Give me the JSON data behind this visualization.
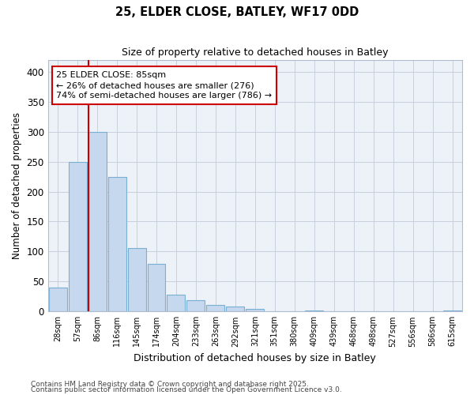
{
  "title1": "25, ELDER CLOSE, BATLEY, WF17 0DD",
  "title2": "Size of property relative to detached houses in Batley",
  "xlabel": "Distribution of detached houses by size in Batley",
  "ylabel": "Number of detached properties",
  "categories": [
    "28sqm",
    "57sqm",
    "86sqm",
    "116sqm",
    "145sqm",
    "174sqm",
    "204sqm",
    "233sqm",
    "263sqm",
    "292sqm",
    "321sqm",
    "351sqm",
    "380sqm",
    "409sqm",
    "439sqm",
    "468sqm",
    "498sqm",
    "527sqm",
    "556sqm",
    "586sqm",
    "615sqm"
  ],
  "values": [
    40,
    250,
    300,
    225,
    106,
    79,
    28,
    19,
    11,
    8,
    5,
    1,
    1,
    2,
    1,
    0,
    0,
    0,
    0,
    0,
    2
  ],
  "bar_color": "#c5d8ee",
  "bar_edge_color": "#7aafd4",
  "grid_color": "#c8d0dc",
  "bg_color": "#edf2f8",
  "vline_color": "#cc0000",
  "vline_x_index": 2,
  "annotation_text": "25 ELDER CLOSE: 85sqm\n← 26% of detached houses are smaller (276)\n74% of semi-detached houses are larger (786) →",
  "annotation_box_color": "#ffffff",
  "annotation_box_edge": "#cc0000",
  "ylim": [
    0,
    420
  ],
  "yticks": [
    0,
    50,
    100,
    150,
    200,
    250,
    300,
    350,
    400
  ],
  "footer1": "Contains HM Land Registry data © Crown copyright and database right 2025.",
  "footer2": "Contains public sector information licensed under the Open Government Licence v3.0.",
  "fig_bg": "#ffffff"
}
